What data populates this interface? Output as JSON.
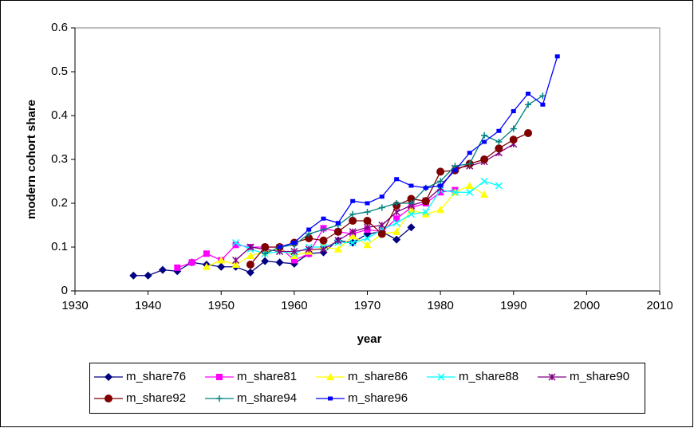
{
  "chart_data": {
    "type": "line",
    "xlabel": "year",
    "ylabel": "modern cohort share",
    "xlim": [
      1930,
      2010
    ],
    "xticks": [
      1930,
      1940,
      1950,
      1960,
      1970,
      1980,
      1990,
      2000,
      2010
    ],
    "ylim": [
      0,
      0.6
    ],
    "yticks": [
      0,
      0.1,
      0.2,
      0.3,
      0.4,
      0.5,
      0.6
    ],
    "grid": false,
    "legend": "bottom",
    "series": [
      {
        "name": "m_share76",
        "color": "#000080",
        "marker": "diamond",
        "x": [
          1938,
          1940,
          1942,
          1944,
          1946,
          1948,
          1950,
          1952,
          1954,
          1956,
          1958,
          1960,
          1962,
          1964,
          1966,
          1968,
          1970,
          1972,
          1974,
          1976
        ],
        "values": [
          0.035,
          0.035,
          0.048,
          0.045,
          0.065,
          0.06,
          0.055,
          0.055,
          0.042,
          0.068,
          0.065,
          0.062,
          0.085,
          0.088,
          0.115,
          0.11,
          0.13,
          0.135,
          0.117,
          0.145
        ]
      },
      {
        "name": "m_share81",
        "color": "#ff00ff",
        "marker": "square",
        "x": [
          1944,
          1946,
          1948,
          1950,
          1952,
          1954,
          1956,
          1958,
          1960,
          1962,
          1964,
          1966,
          1968,
          1970,
          1972,
          1974,
          1976,
          1978,
          1980,
          1982
        ],
        "values": [
          0.053,
          0.065,
          0.085,
          0.07,
          0.105,
          0.1,
          0.1,
          0.1,
          0.07,
          0.085,
          0.143,
          0.135,
          0.13,
          0.14,
          0.135,
          0.165,
          0.19,
          0.2,
          0.225,
          0.23
        ]
      },
      {
        "name": "m_share86",
        "color": "#ffff00",
        "marker": "triangle",
        "x": [
          1948,
          1950,
          1952,
          1954,
          1956,
          1958,
          1960,
          1962,
          1964,
          1966,
          1968,
          1970,
          1972,
          1974,
          1976,
          1978,
          1980,
          1982,
          1984,
          1986
        ],
        "values": [
          0.055,
          0.07,
          0.06,
          0.08,
          0.09,
          0.095,
          0.08,
          0.09,
          0.1,
          0.095,
          0.125,
          0.105,
          0.13,
          0.135,
          0.185,
          0.175,
          0.185,
          0.225,
          0.24,
          0.22
        ]
      },
      {
        "name": "m_share88",
        "color": "#00ffff",
        "marker": "x",
        "x": [
          1952,
          1954,
          1956,
          1958,
          1960,
          1962,
          1964,
          1966,
          1968,
          1970,
          1972,
          1974,
          1976,
          1978,
          1980,
          1982,
          1984,
          1986,
          1988
        ],
        "values": [
          0.11,
          0.095,
          0.085,
          0.09,
          0.085,
          0.1,
          0.1,
          0.11,
          0.11,
          0.12,
          0.14,
          0.155,
          0.175,
          0.18,
          0.23,
          0.225,
          0.225,
          0.25,
          0.24
        ]
      },
      {
        "name": "m_share90",
        "color": "#800080",
        "marker": "star",
        "x": [
          1952,
          1954,
          1956,
          1958,
          1960,
          1962,
          1964,
          1966,
          1968,
          1970,
          1972,
          1974,
          1976,
          1978,
          1980,
          1982,
          1984,
          1986,
          1988,
          1990
        ],
        "values": [
          0.07,
          0.1,
          0.095,
          0.09,
          0.09,
          0.095,
          0.095,
          0.115,
          0.135,
          0.145,
          0.15,
          0.18,
          0.195,
          0.205,
          0.235,
          0.28,
          0.285,
          0.295,
          0.315,
          0.335
        ]
      },
      {
        "name": "m_share92",
        "color": "#800000",
        "marker": "circle",
        "x": [
          1954,
          1956,
          1958,
          1960,
          1962,
          1964,
          1966,
          1968,
          1970,
          1972,
          1974,
          1976,
          1978,
          1980,
          1982,
          1984,
          1986,
          1988,
          1990,
          1992
        ],
        "values": [
          0.06,
          0.1,
          0.1,
          0.11,
          0.12,
          0.115,
          0.135,
          0.16,
          0.16,
          0.13,
          0.195,
          0.21,
          0.205,
          0.272,
          0.275,
          0.29,
          0.3,
          0.325,
          0.345,
          0.36
        ]
      },
      {
        "name": "m_share94",
        "color": "#008080",
        "marker": "plus",
        "x": [
          1956,
          1958,
          1960,
          1962,
          1964,
          1966,
          1968,
          1970,
          1972,
          1974,
          1976,
          1978,
          1980,
          1982,
          1984,
          1986,
          1988,
          1990,
          1992,
          1994
        ],
        "values": [
          0.085,
          0.1,
          0.105,
          0.13,
          0.14,
          0.15,
          0.175,
          0.18,
          0.19,
          0.2,
          0.2,
          0.235,
          0.25,
          0.285,
          0.29,
          0.355,
          0.34,
          0.37,
          0.425,
          0.445
        ]
      },
      {
        "name": "m_share96",
        "color": "#0000ff",
        "marker": "smallsquare",
        "x": [
          1958,
          1960,
          1962,
          1964,
          1966,
          1968,
          1970,
          1972,
          1974,
          1976,
          1978,
          1980,
          1982,
          1984,
          1986,
          1988,
          1990,
          1992,
          1994,
          1996
        ],
        "values": [
          0.1,
          0.11,
          0.14,
          0.165,
          0.155,
          0.205,
          0.2,
          0.215,
          0.255,
          0.24,
          0.235,
          0.24,
          0.275,
          0.315,
          0.34,
          0.365,
          0.41,
          0.45,
          0.425,
          0.535
        ]
      }
    ]
  }
}
